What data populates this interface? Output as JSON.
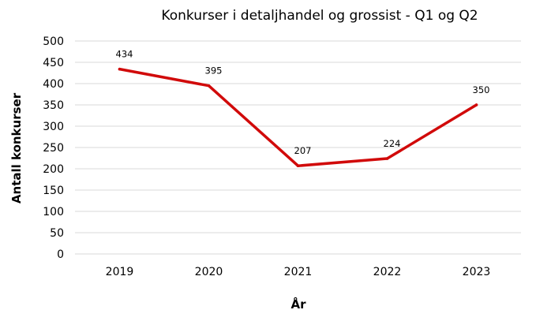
{
  "chart_data": {
    "type": "line",
    "title": "Konkurser i detaljhandel og grossist - Q1 og Q2",
    "xlabel": "År",
    "ylabel": "Antall konkurser",
    "categories": [
      "2019",
      "2020",
      "2021",
      "2022",
      "2023"
    ],
    "series": [
      {
        "values": [
          434,
          395,
          207,
          224,
          350
        ],
        "color": "#d10a0a"
      }
    ],
    "data_labels": [
      "434",
      "395",
      "207",
      "224",
      "350"
    ],
    "ylim": [
      0,
      500
    ],
    "yticks": [
      0,
      50,
      100,
      150,
      200,
      250,
      300,
      350,
      400,
      450,
      500
    ],
    "grid": true,
    "legend": "none"
  }
}
